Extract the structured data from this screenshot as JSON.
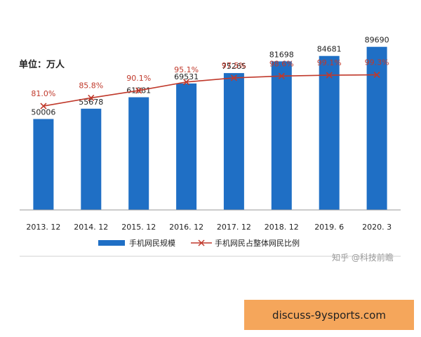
{
  "chart_data": {
    "type": "bar",
    "unit_label": "单位：万人",
    "categories": [
      "2013. 12",
      "2014. 12",
      "2015. 12",
      "2016. 12",
      "2017. 12",
      "2018. 12",
      "2019. 6",
      "2020. 3"
    ],
    "series": [
      {
        "name": "手机网民规模",
        "type": "bar",
        "values": [
          50006,
          55678,
          61981,
          69531,
          75265,
          81698,
          84681,
          89690
        ],
        "color": "#1f6fc5"
      },
      {
        "name": "手机网民占整体网民比例",
        "type": "line",
        "values": [
          81.0,
          85.8,
          90.1,
          95.1,
          97.5,
          98.6,
          99.1,
          99.3
        ],
        "labels": [
          "81.0%",
          "85.8%",
          "90.1%",
          "95.1%",
          "97.5%",
          "98.6%",
          "99.1%",
          "99.3%"
        ],
        "color": "#c0392b"
      }
    ],
    "ylim": [
      0,
      100000
    ],
    "line_ylim": [
      65,
      102
    ],
    "legend_position": "bottom",
    "grid": false
  },
  "watermark": "知乎 @科技前瞻",
  "footer": {
    "text": "discuss-9ysports.com"
  }
}
